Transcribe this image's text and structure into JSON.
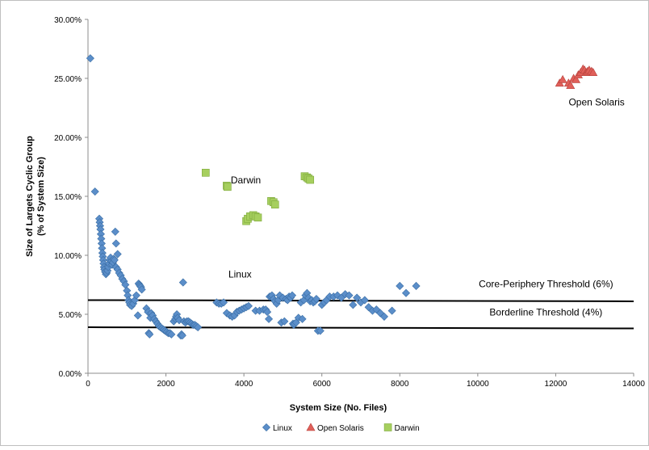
{
  "chart_data": {
    "type": "scatter",
    "title": "",
    "xlabel": "System Size (No. Files)",
    "ylabel": "Size of Largets Cyclic Group (% of System Size)",
    "ylabel_lines": [
      "Size of Largets Cyclic Group",
      "(% of System Size)"
    ],
    "xlim": [
      0,
      14000
    ],
    "ylim": [
      0,
      30
    ],
    "x_ticks": [
      0,
      2000,
      4000,
      6000,
      8000,
      10000,
      12000,
      14000
    ],
    "x_tick_labels": [
      "0",
      "2000",
      "4000",
      "6000",
      "8000",
      "10000",
      "12000",
      "14000"
    ],
    "y_ticks": [
      0,
      5,
      10,
      15,
      20,
      25,
      30
    ],
    "y_tick_labels": [
      "0.00%",
      "5.00%",
      "10.00%",
      "15.00%",
      "20.00%",
      "25.00%",
      "30.00%"
    ],
    "grid": false,
    "legend_position": "bottom",
    "annotations": [
      {
        "text": "Open Solaris",
        "x": 13050,
        "y": 22.7
      },
      {
        "text": "Darwin",
        "x": 4050,
        "y": 16.1
      },
      {
        "text": "Linux",
        "x": 3900,
        "y": 8.1
      },
      {
        "text": "Core-Periphery Threshold (6%)",
        "x": 11750,
        "y": 7.3
      },
      {
        "text": "Borderline Threshold (4%)",
        "x": 11750,
        "y": 4.9
      }
    ],
    "reference_lines": [
      {
        "name": "Core-Periphery Threshold (6%)",
        "x": [
          0,
          14000
        ],
        "y": [
          6.2,
          6.1
        ]
      },
      {
        "name": "Borderline Threshold (4%)",
        "x": [
          0,
          14000
        ],
        "y": [
          3.9,
          3.8
        ]
      }
    ],
    "series": [
      {
        "name": "Linux",
        "marker": "diamond",
        "color": "#5b8ec9",
        "points": [
          [
            60,
            26.7
          ],
          [
            180,
            15.4
          ],
          [
            290,
            13.1
          ],
          [
            300,
            12.8
          ],
          [
            310,
            12.5
          ],
          [
            320,
            12.2
          ],
          [
            330,
            11.8
          ],
          [
            340,
            11.4
          ],
          [
            350,
            11.0
          ],
          [
            360,
            10.6
          ],
          [
            370,
            10.2
          ],
          [
            380,
            9.9
          ],
          [
            390,
            9.6
          ],
          [
            400,
            9.3
          ],
          [
            410,
            9.0
          ],
          [
            420,
            8.8
          ],
          [
            440,
            8.6
          ],
          [
            460,
            8.4
          ],
          [
            480,
            8.5
          ],
          [
            500,
            8.7
          ],
          [
            520,
            9.0
          ],
          [
            540,
            9.3
          ],
          [
            560,
            9.6
          ],
          [
            580,
            9.8
          ],
          [
            600,
            9.5
          ],
          [
            620,
            9.2
          ],
          [
            640,
            9.4
          ],
          [
            660,
            9.7
          ],
          [
            700,
            12.0
          ],
          [
            720,
            11.0
          ],
          [
            760,
            10.1
          ],
          [
            680,
            9.6
          ],
          [
            720,
            9.0
          ],
          [
            760,
            8.8
          ],
          [
            800,
            8.5
          ],
          [
            840,
            8.3
          ],
          [
            880,
            8.0
          ],
          [
            920,
            7.8
          ],
          [
            960,
            7.5
          ],
          [
            1000,
            7.0
          ],
          [
            1020,
            6.6
          ],
          [
            1040,
            6.2
          ],
          [
            1060,
            6.0
          ],
          [
            1080,
            5.8
          ],
          [
            1120,
            5.7
          ],
          [
            1160,
            5.9
          ],
          [
            1200,
            6.2
          ],
          [
            1240,
            6.6
          ],
          [
            1280,
            4.9
          ],
          [
            1300,
            7.6
          ],
          [
            1320,
            7.5
          ],
          [
            1340,
            7.4
          ],
          [
            1360,
            7.3
          ],
          [
            1380,
            7.1
          ],
          [
            1500,
            5.5
          ],
          [
            1540,
            5.2
          ],
          [
            1560,
            3.4
          ],
          [
            1580,
            3.3
          ],
          [
            1600,
            4.7
          ],
          [
            1620,
            5.1
          ],
          [
            1660,
            4.9
          ],
          [
            1700,
            4.6
          ],
          [
            1740,
            4.4
          ],
          [
            1780,
            4.2
          ],
          [
            1820,
            4.0
          ],
          [
            1860,
            3.9
          ],
          [
            1900,
            3.8
          ],
          [
            1940,
            3.7
          ],
          [
            1980,
            3.6
          ],
          [
            2020,
            3.5
          ],
          [
            2060,
            3.4
          ],
          [
            2100,
            3.4
          ],
          [
            2140,
            3.3
          ],
          [
            2200,
            4.4
          ],
          [
            2240,
            4.6
          ],
          [
            2260,
            4.8
          ],
          [
            2280,
            5.0
          ],
          [
            2300,
            4.7
          ],
          [
            2340,
            4.5
          ],
          [
            2380,
            3.2
          ],
          [
            2400,
            3.3
          ],
          [
            2420,
            3.2
          ],
          [
            2440,
            7.7
          ],
          [
            2460,
            4.4
          ],
          [
            2500,
            4.3
          ],
          [
            2540,
            4.4
          ],
          [
            2580,
            4.4
          ],
          [
            2620,
            4.3
          ],
          [
            2660,
            4.2
          ],
          [
            2700,
            4.1
          ],
          [
            2740,
            4.1
          ],
          [
            2780,
            4.0
          ],
          [
            2820,
            3.9
          ],
          [
            3300,
            6.0
          ],
          [
            3360,
            5.9
          ],
          [
            3420,
            5.9
          ],
          [
            3480,
            6.0
          ],
          [
            3560,
            5.1
          ],
          [
            3640,
            4.9
          ],
          [
            3700,
            4.8
          ],
          [
            3760,
            4.9
          ],
          [
            3820,
            5.2
          ],
          [
            3880,
            5.3
          ],
          [
            3940,
            5.4
          ],
          [
            4000,
            5.5
          ],
          [
            4060,
            5.6
          ],
          [
            4120,
            5.7
          ],
          [
            4300,
            5.3
          ],
          [
            4400,
            5.3
          ],
          [
            4500,
            5.4
          ],
          [
            4560,
            5.4
          ],
          [
            4600,
            5.2
          ],
          [
            4640,
            4.6
          ],
          [
            4660,
            6.5
          ],
          [
            4700,
            6.5
          ],
          [
            4720,
            6.6
          ],
          [
            4760,
            6.3
          ],
          [
            4800,
            6.1
          ],
          [
            4840,
            5.9
          ],
          [
            4880,
            6.2
          ],
          [
            4920,
            6.6
          ],
          [
            4960,
            4.3
          ],
          [
            5000,
            6.4
          ],
          [
            5040,
            4.4
          ],
          [
            5080,
            6.3
          ],
          [
            5120,
            6.2
          ],
          [
            5160,
            6.5
          ],
          [
            5200,
            6.4
          ],
          [
            5240,
            6.6
          ],
          [
            5260,
            4.2
          ],
          [
            5280,
            4.1
          ],
          [
            5300,
            4.2
          ],
          [
            5340,
            4.3
          ],
          [
            5400,
            4.7
          ],
          [
            5460,
            6.0
          ],
          [
            5500,
            4.6
          ],
          [
            5540,
            6.2
          ],
          [
            5580,
            6.6
          ],
          [
            5620,
            6.8
          ],
          [
            5660,
            6.4
          ],
          [
            5700,
            6.1
          ],
          [
            5740,
            6.2
          ],
          [
            5780,
            6.0
          ],
          [
            5820,
            6.1
          ],
          [
            5860,
            6.3
          ],
          [
            5900,
            3.6
          ],
          [
            5960,
            3.6
          ],
          [
            6000,
            5.8
          ],
          [
            6060,
            6.0
          ],
          [
            6120,
            6.2
          ],
          [
            6200,
            6.5
          ],
          [
            6300,
            6.5
          ],
          [
            6400,
            6.6
          ],
          [
            6500,
            6.4
          ],
          [
            6600,
            6.7
          ],
          [
            6700,
            6.6
          ],
          [
            6800,
            5.8
          ],
          [
            6900,
            6.4
          ],
          [
            7000,
            6.0
          ],
          [
            7100,
            6.2
          ],
          [
            7200,
            5.6
          ],
          [
            7300,
            5.3
          ],
          [
            7400,
            5.4
          ],
          [
            7500,
            5.1
          ],
          [
            7600,
            4.8
          ],
          [
            7800,
            5.3
          ],
          [
            8000,
            7.4
          ],
          [
            8160,
            6.8
          ],
          [
            8420,
            7.4
          ]
        ]
      },
      {
        "name": "Open Solaris",
        "marker": "triangle",
        "color": "#e0605a",
        "points": [
          [
            12100,
            24.6
          ],
          [
            12180,
            24.9
          ],
          [
            12330,
            24.6
          ],
          [
            12380,
            24.4
          ],
          [
            12460,
            25.0
          ],
          [
            12520,
            24.9
          ],
          [
            12580,
            25.3
          ],
          [
            12640,
            25.5
          ],
          [
            12700,
            25.8
          ],
          [
            12740,
            25.7
          ],
          [
            12780,
            25.5
          ],
          [
            12820,
            25.6
          ],
          [
            12860,
            25.7
          ],
          [
            12920,
            25.6
          ],
          [
            12960,
            25.5
          ]
        ]
      },
      {
        "name": "Darwin",
        "marker": "square",
        "color": "#a6cf5e",
        "points": [
          [
            3020,
            17.0
          ],
          [
            3560,
            15.9
          ],
          [
            3580,
            15.8
          ],
          [
            4060,
            12.9
          ],
          [
            4100,
            13.1
          ],
          [
            4160,
            13.3
          ],
          [
            4240,
            13.4
          ],
          [
            4300,
            13.3
          ],
          [
            4360,
            13.2
          ],
          [
            4700,
            14.6
          ],
          [
            4760,
            14.5
          ],
          [
            4800,
            14.3
          ],
          [
            5560,
            16.7
          ],
          [
            5620,
            16.6
          ],
          [
            5660,
            16.5
          ],
          [
            5700,
            16.4
          ]
        ]
      }
    ]
  }
}
